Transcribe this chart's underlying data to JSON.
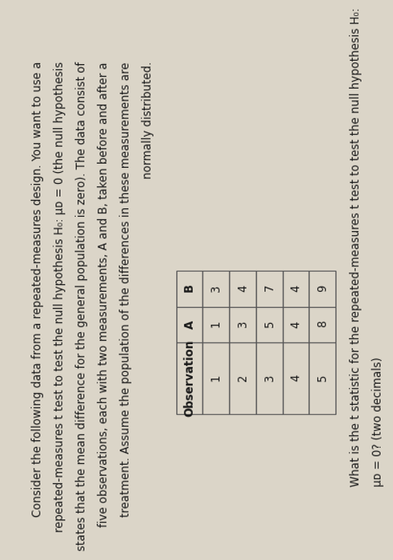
{
  "bg_color": "#cec8bc",
  "paper_color": "#dbd5c8",
  "para_lines": [
    "Consider the following data from a repeated-measures design. You want to use a",
    "repeated-measures t test to test the null hypothesis H₀: μᴅ = 0 (the null hypothesis",
    "states that the mean difference for the general population is zero). The data consist of",
    "five observations, each with two measurements, A and B, taken before and after a",
    "treatment. Assume the population of the differences in these measurements are",
    "normally distributed."
  ],
  "table_headers": [
    "Observation",
    "A",
    "B"
  ],
  "table_data": [
    [
      "1",
      "1",
      "3"
    ],
    [
      "2",
      "3",
      "4"
    ],
    [
      "3",
      "5",
      "7"
    ],
    [
      "4",
      "4",
      "4"
    ],
    [
      "5",
      "8",
      "9"
    ]
  ],
  "question_lines": [
    "What is the t statistic for the repeated-measures t test to test the null hypothesis H₀:",
    "μᴅ = 0? (two decimals)"
  ],
  "rotation": 90
}
